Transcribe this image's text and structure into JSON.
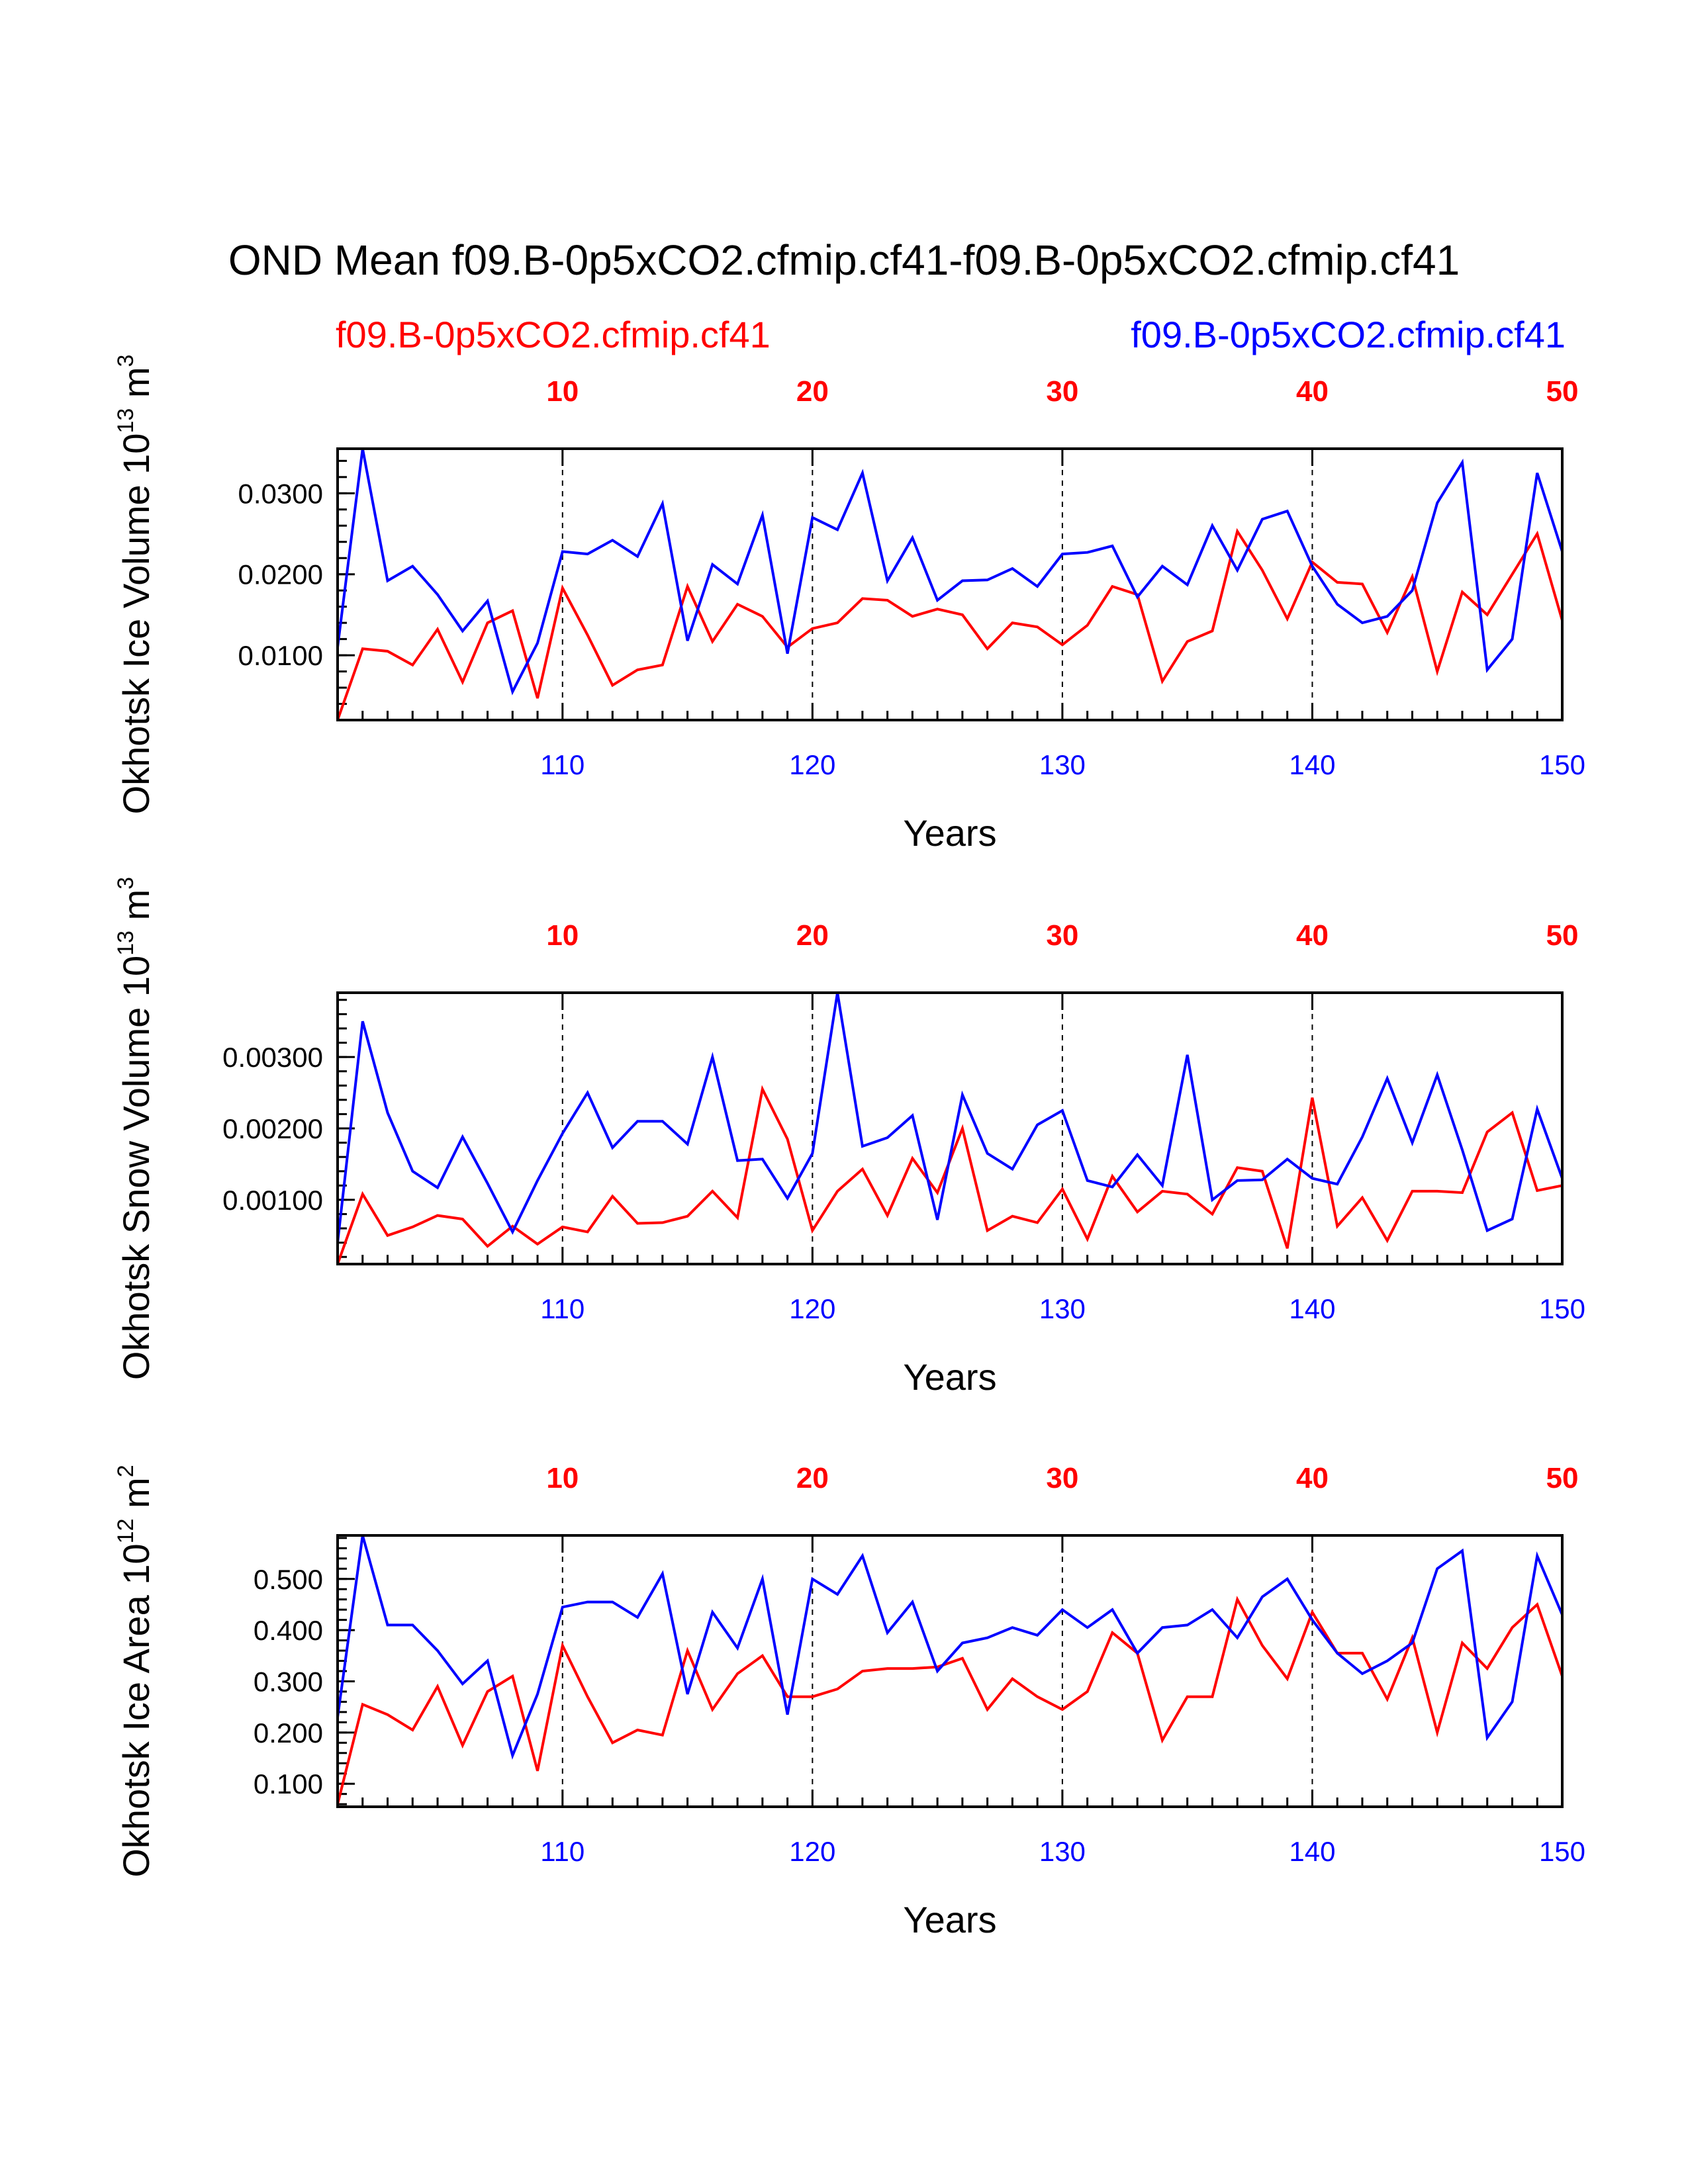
{
  "title": "OND Mean f09.B-0p5xCO2.cfmip.cf41-f09.B-0p5xCO2.cfmip.cf41",
  "legend": {
    "left": {
      "label": "f09.B-0p5xCO2.cfmip.cf41",
      "color": "#ff0000"
    },
    "right": {
      "label": "f09.B-0p5xCO2.cfmip.cf41",
      "color": "#0000ff"
    }
  },
  "colors": {
    "red": "#ff0000",
    "blue": "#0000ff",
    "axis": "#000000"
  },
  "chart_data": [
    {
      "type": "line",
      "ylabel_main": "Okhotsk Ice Volume 10",
      "ylabel_exp": "13",
      "ylabel_unit": " m",
      "ylabel_unit_exp": "3",
      "xlabel": "Years",
      "xlim": [
        101,
        150
      ],
      "ylim": [
        0.002,
        0.0355
      ],
      "yticks": [
        0.01,
        0.02,
        0.03
      ],
      "ytick_labels": [
        "0.0100",
        "0.0200",
        "0.0300"
      ],
      "xticks_bottom": [
        110,
        120,
        130,
        140,
        150
      ],
      "xtick_bottom_labels": [
        "110",
        "120",
        "130",
        "140",
        "150"
      ],
      "xticks_top": [
        110,
        120,
        130,
        140,
        150
      ],
      "xtick_top_labels": [
        "10",
        "20",
        "30",
        "40",
        "50"
      ],
      "gridlines_x": [
        110,
        120,
        130,
        140
      ],
      "series": [
        {
          "name": "f09.B-0p5xCO2.cfmip.cf41",
          "color": "#ff0000",
          "x_start": 101,
          "values": [
            0.002,
            0.0108,
            0.0105,
            0.0088,
            0.0132,
            0.0067,
            0.014,
            0.0155,
            0.0047,
            0.0183,
            0.0125,
            0.0063,
            0.0082,
            0.0088,
            0.0185,
            0.0117,
            0.0163,
            0.0148,
            0.011,
            0.0133,
            0.014,
            0.017,
            0.0168,
            0.0148,
            0.0157,
            0.015,
            0.0108,
            0.014,
            0.0135,
            0.0113,
            0.0137,
            0.0185,
            0.0175,
            0.0068,
            0.0117,
            0.013,
            0.0253,
            0.0205,
            0.0145,
            0.0215,
            0.019,
            0.0188,
            0.0128,
            0.0197,
            0.008,
            0.0178,
            0.015,
            0.02,
            0.025,
            0.0143
          ]
        },
        {
          "name": "f09.B-0p5xCO2.cfmip.cf41",
          "color": "#0000ff",
          "x_start": 101,
          "values": [
            0.011,
            0.0355,
            0.0192,
            0.021,
            0.0175,
            0.013,
            0.0167,
            0.0055,
            0.0115,
            0.0228,
            0.0225,
            0.0242,
            0.0222,
            0.0287,
            0.0118,
            0.0212,
            0.0188,
            0.0273,
            0.0102,
            0.027,
            0.0255,
            0.0325,
            0.0192,
            0.0245,
            0.0168,
            0.0192,
            0.0193,
            0.0207,
            0.0185,
            0.0225,
            0.0227,
            0.0235,
            0.0172,
            0.021,
            0.0187,
            0.026,
            0.0205,
            0.0268,
            0.0278,
            0.021,
            0.0163,
            0.014,
            0.0148,
            0.018,
            0.0288,
            0.0338,
            0.0082,
            0.012,
            0.0325,
            0.0228
          ]
        }
      ]
    },
    {
      "type": "line",
      "ylabel_main": "Okhotsk Snow Volume 10",
      "ylabel_exp": "13",
      "ylabel_unit": " m",
      "ylabel_unit_exp": "3",
      "xlabel": "Years",
      "xlim": [
        101,
        150
      ],
      "ylim": [
        0.0001,
        0.0039
      ],
      "yticks": [
        0.001,
        0.002,
        0.003
      ],
      "ytick_labels": [
        "0.00100",
        "0.00200",
        "0.00300"
      ],
      "xticks_bottom": [
        110,
        120,
        130,
        140,
        150
      ],
      "xtick_bottom_labels": [
        "110",
        "120",
        "130",
        "140",
        "150"
      ],
      "xticks_top": [
        110,
        120,
        130,
        140,
        150
      ],
      "xtick_top_labels": [
        "10",
        "20",
        "30",
        "40",
        "50"
      ],
      "gridlines_x": [
        110,
        120,
        130,
        140
      ],
      "series": [
        {
          "name": "f09.B-0p5xCO2.cfmip.cf41",
          "color": "#ff0000",
          "x_start": 101,
          "values": [
            0.0001,
            0.00108,
            0.0005,
            0.00062,
            0.00078,
            0.00073,
            0.00035,
            0.00063,
            0.00038,
            0.00062,
            0.00055,
            0.00105,
            0.00067,
            0.00068,
            0.00077,
            0.00112,
            0.00075,
            0.00255,
            0.00185,
            0.00057,
            0.00112,
            0.00143,
            0.00078,
            0.00158,
            0.0011,
            0.002,
            0.00057,
            0.00077,
            0.00068,
            0.00115,
            0.00045,
            0.00133,
            0.00083,
            0.00112,
            0.00108,
            0.0008,
            0.00145,
            0.0014,
            0.00032,
            0.00243,
            0.00063,
            0.00103,
            0.00043,
            0.00112,
            0.00112,
            0.0011,
            0.00195,
            0.00222,
            0.00113,
            0.0012
          ]
        },
        {
          "name": "f09.B-0p5xCO2.cfmip.cf41",
          "color": "#0000ff",
          "x_start": 101,
          "values": [
            0.0004,
            0.0035,
            0.00222,
            0.0014,
            0.00117,
            0.00188,
            0.00123,
            0.00055,
            0.00127,
            0.00193,
            0.0025,
            0.00173,
            0.0021,
            0.0021,
            0.00178,
            0.003,
            0.00155,
            0.00157,
            0.00102,
            0.00165,
            0.0039,
            0.00175,
            0.00187,
            0.00218,
            0.00072,
            0.00247,
            0.00165,
            0.00143,
            0.00205,
            0.00225,
            0.00127,
            0.00118,
            0.00163,
            0.0012,
            0.00303,
            0.001,
            0.00127,
            0.00128,
            0.00157,
            0.0013,
            0.00122,
            0.00188,
            0.0027,
            0.0018,
            0.00275,
            0.0017,
            0.00057,
            0.00073,
            0.00227,
            0.0013
          ]
        }
      ]
    },
    {
      "type": "line",
      "ylabel_main": "Okhotsk Ice Area 10",
      "ylabel_exp": "12",
      "ylabel_unit": " m",
      "ylabel_unit_exp": "2",
      "xlabel": "Years",
      "xlim": [
        101,
        150
      ],
      "ylim": [
        0.055,
        0.585
      ],
      "yticks": [
        0.1,
        0.2,
        0.3,
        0.4,
        0.5
      ],
      "ytick_labels": [
        "0.100",
        "0.200",
        "0.300",
        "0.400",
        "0.500"
      ],
      "xticks_bottom": [
        110,
        120,
        130,
        140,
        150
      ],
      "xtick_bottom_labels": [
        "110",
        "120",
        "130",
        "140",
        "150"
      ],
      "xticks_top": [
        110,
        120,
        130,
        140,
        150
      ],
      "xtick_top_labels": [
        "10",
        "20",
        "30",
        "40",
        "50"
      ],
      "gridlines_x": [
        110,
        120,
        130,
        140
      ],
      "series": [
        {
          "name": "f09.B-0p5xCO2.cfmip.cf41",
          "color": "#ff0000",
          "x_start": 101,
          "values": [
            0.06,
            0.255,
            0.235,
            0.205,
            0.29,
            0.175,
            0.28,
            0.31,
            0.125,
            0.37,
            0.27,
            0.18,
            0.205,
            0.195,
            0.36,
            0.245,
            0.315,
            0.35,
            0.27,
            0.27,
            0.285,
            0.32,
            0.325,
            0.325,
            0.328,
            0.345,
            0.245,
            0.305,
            0.27,
            0.245,
            0.28,
            0.395,
            0.355,
            0.185,
            0.27,
            0.27,
            0.46,
            0.37,
            0.305,
            0.435,
            0.355,
            0.355,
            0.265,
            0.385,
            0.2,
            0.375,
            0.325,
            0.405,
            0.45,
            0.31
          ]
        },
        {
          "name": "f09.B-0p5xCO2.cfmip.cf41",
          "color": "#0000ff",
          "x_start": 101,
          "values": [
            0.23,
            0.585,
            0.41,
            0.41,
            0.36,
            0.295,
            0.34,
            0.155,
            0.275,
            0.445,
            0.455,
            0.455,
            0.425,
            0.51,
            0.275,
            0.435,
            0.365,
            0.5,
            0.235,
            0.5,
            0.47,
            0.545,
            0.395,
            0.455,
            0.32,
            0.375,
            0.385,
            0.405,
            0.39,
            0.44,
            0.405,
            0.44,
            0.355,
            0.405,
            0.41,
            0.44,
            0.385,
            0.465,
            0.5,
            0.42,
            0.355,
            0.315,
            0.34,
            0.375,
            0.52,
            0.555,
            0.19,
            0.26,
            0.545,
            0.43
          ]
        }
      ]
    }
  ]
}
